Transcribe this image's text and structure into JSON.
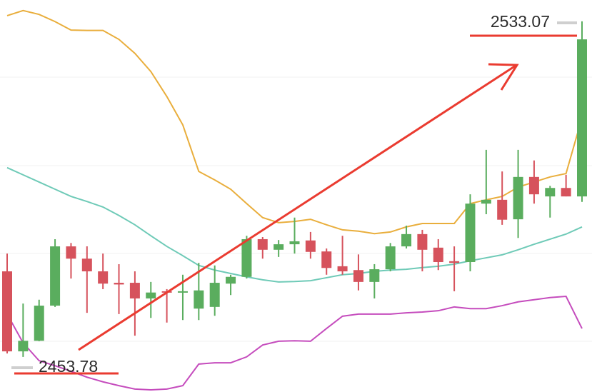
{
  "chart_data": {
    "type": "candlestick",
    "ylim": [
      2445.5,
      2538.1
    ],
    "up_color": "#5aad5e",
    "down_color": "#d6525c",
    "open": [
      2474.0,
      2455.1,
      2457.6,
      2465.9,
      2479.9,
      2477.0,
      2474.0,
      2471.3,
      2471.3,
      2467.6,
      2469.3,
      2469.0,
      2465.2,
      2465.6,
      2471.1,
      2472.7,
      2481.6,
      2479.1,
      2480.4,
      2481.3,
      2478.7,
      2475.2,
      2474.3,
      2471.5,
      2474.5,
      2479.9,
      2482.8,
      2479.6,
      2476.4,
      2476.2,
      2490.0,
      2490.9,
      2486.3,
      2496.3,
      2491.7,
      2493.7,
      2491.7
    ],
    "high": [
      2478.2,
      2466.4,
      2467.3,
      2481.6,
      2480.7,
      2479.9,
      2478.2,
      2475.7,
      2474.0,
      2471.5,
      2469.8,
      2473.2,
      2476.0,
      2475.4,
      2473.2,
      2482.4,
      2482.1,
      2481.4,
      2486.7,
      2483.3,
      2479.4,
      2482.4,
      2478.0,
      2475.7,
      2480.7,
      2484.8,
      2483.8,
      2481.6,
      2479.9,
      2492.2,
      2502.7,
      2497.6,
      2502.7,
      2500.2,
      2494.2,
      2496.8,
      2533.07
    ],
    "low": [
      2454.6,
      2453.78,
      2457.5,
      2465.6,
      2472.3,
      2464.2,
      2469.8,
      2463.9,
      2458.8,
      2463.0,
      2461.9,
      2462.5,
      2462.5,
      2463.5,
      2468.4,
      2472.3,
      2477.0,
      2477.4,
      2478.2,
      2477.0,
      2473.2,
      2473.2,
      2469.5,
      2467.6,
      2474.0,
      2479.4,
      2474.0,
      2474.3,
      2469.3,
      2474.0,
      2487.5,
      2485.0,
      2481.9,
      2490.0,
      2486.7,
      2491.7,
      2490.4
    ],
    "close": [
      2455.1,
      2457.6,
      2465.9,
      2479.9,
      2477.0,
      2474.0,
      2471.1,
      2470.9,
      2467.6,
      2469.0,
      2469.0,
      2469.3,
      2469.5,
      2471.3,
      2472.7,
      2481.6,
      2479.1,
      2480.4,
      2481.1,
      2478.6,
      2474.8,
      2474.0,
      2471.5,
      2474.5,
      2479.9,
      2482.8,
      2479.1,
      2476.2,
      2476.0,
      2490.0,
      2490.9,
      2486.2,
      2496.3,
      2492.2,
      2493.7,
      2491.7,
      2528.8
    ],
    "overlays": [
      {
        "color": "#e9ae3c",
        "values": [
          2534.4,
          2535.6,
          2534.7,
          2533.0,
          2531.0,
          2530.9,
          2530.9,
          2528.8,
          2525.5,
          2521.2,
          2515.3,
          2508.6,
          2497.6,
          2495.6,
          2493.4,
          2490.0,
          2486.7,
          2485.5,
          2485.8,
          2486.3,
          2485.0,
          2483.8,
          2483.5,
          2482.9,
          2483.3,
          2484.5,
          2485.3,
          2485.3,
          2485.3,
          2490.0,
          2490.9,
          2491.7,
          2493.9,
          2495.1,
          2496.3,
          2497.1,
          2510.3
        ]
      },
      {
        "color": "#6ecab7",
        "values": [
          2498.5,
          2496.8,
          2495.1,
          2493.4,
          2491.7,
          2490.5,
          2489.2,
          2487.2,
          2485.0,
          2482.4,
          2479.9,
          2477.7,
          2475.4,
          2474.3,
          2473.5,
          2472.7,
          2472.0,
          2471.5,
          2471.6,
          2471.8,
          2472.5,
          2473.2,
          2473.5,
          2474.0,
          2474.3,
          2474.5,
          2474.9,
          2475.2,
          2475.7,
          2476.5,
          2477.2,
          2477.9,
          2479.1,
          2480.4,
          2481.6,
          2482.8,
          2484.5
        ]
      },
      {
        "color": "#c54cbd",
        "values": [
          2463.9,
          2457.1,
          2452.9,
          2451.7,
          2450.4,
          2449.0,
          2447.9,
          2447.0,
          2446.2,
          2446.0,
          2446.2,
          2447.0,
          2452.1,
          2452.4,
          2452.4,
          2453.8,
          2456.6,
          2457.5,
          2457.6,
          2457.5,
          2460.5,
          2463.4,
          2463.9,
          2463.9,
          2463.9,
          2464.2,
          2464.4,
          2464.7,
          2465.6,
          2465.2,
          2465.2,
          2465.9,
          2466.8,
          2467.3,
          2467.8,
          2468.1,
          2460.5
        ]
      }
    ],
    "annotations": [
      "2533.07",
      "2453.78"
    ]
  }
}
